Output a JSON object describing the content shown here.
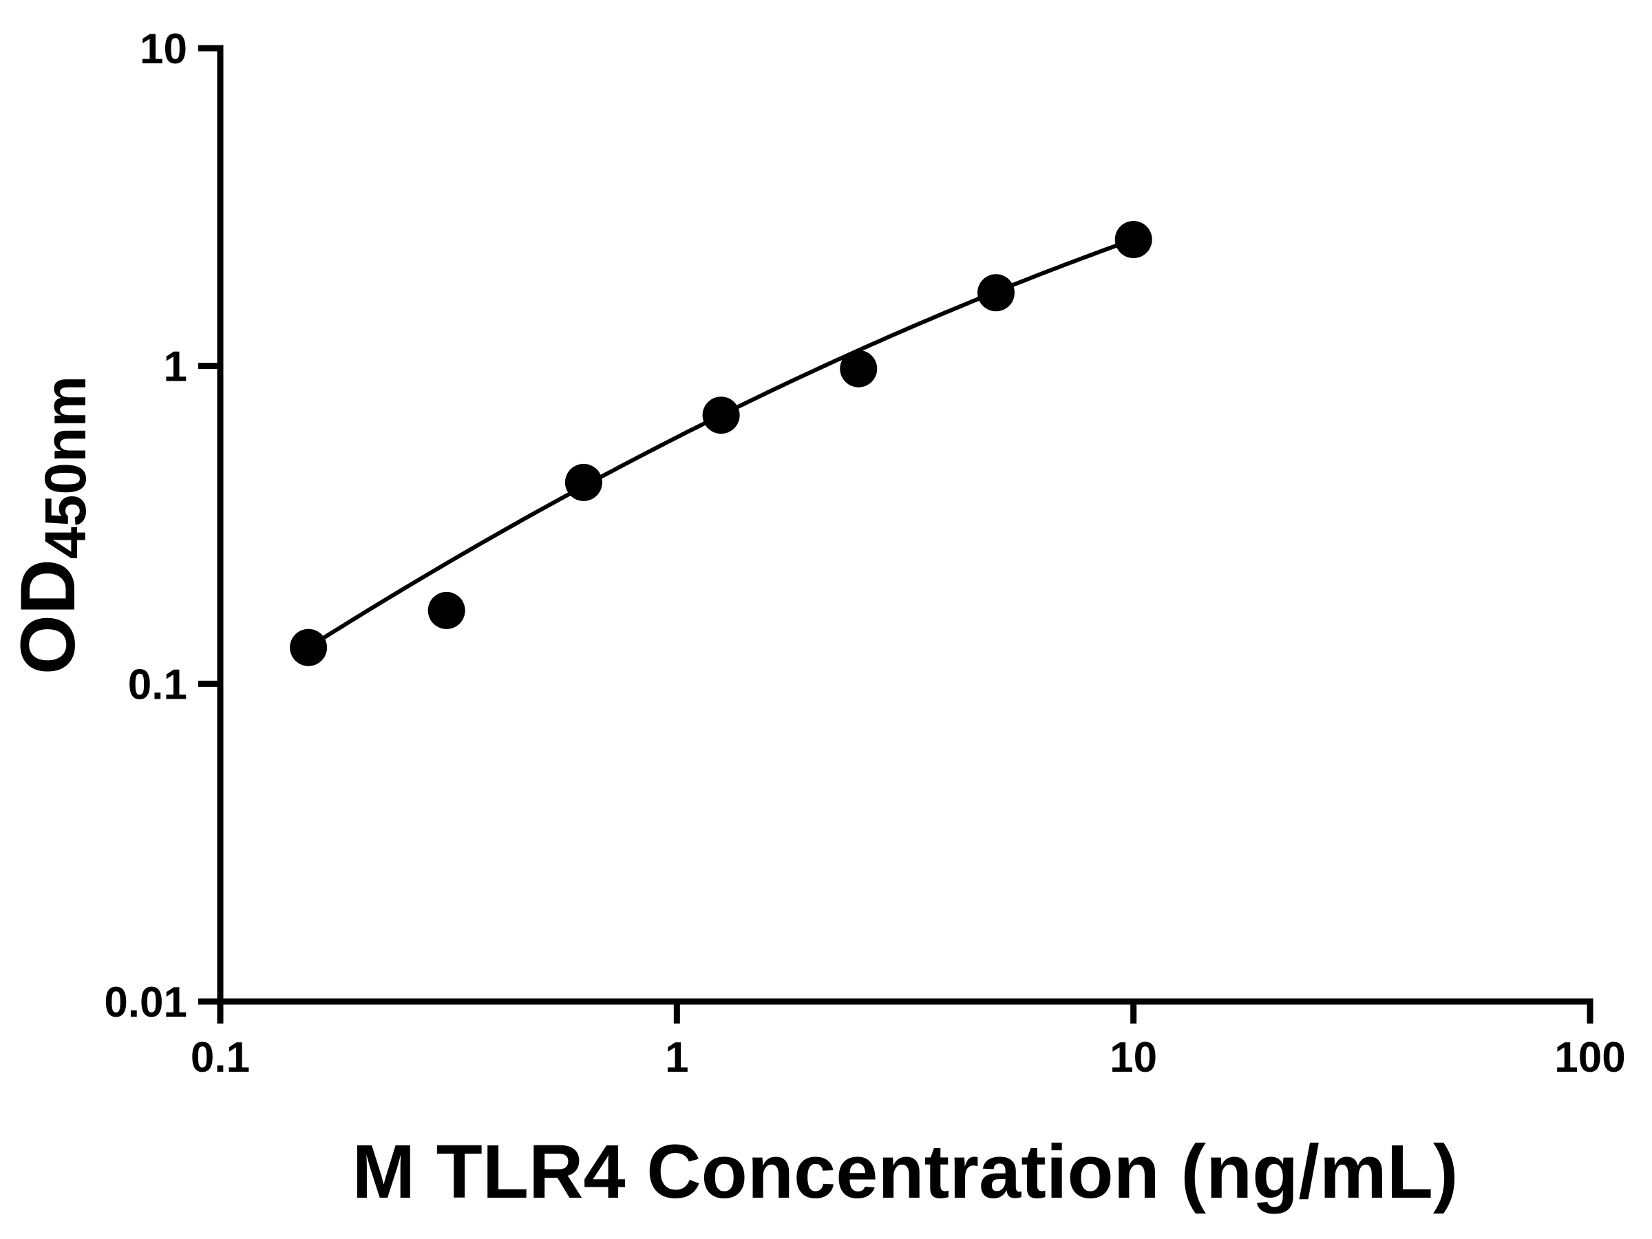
{
  "chart_data": {
    "type": "scatter",
    "title": "",
    "xlabel": "M TLR4 Concentration (ng/mL)",
    "ylabel_main": "OD",
    "ylabel_sub": "450nm",
    "x_scale": "log",
    "y_scale": "log",
    "xlim": [
      0.1,
      100
    ],
    "ylim": [
      0.01,
      10
    ],
    "x_ticks": [
      0.1,
      1,
      10,
      100
    ],
    "x_tick_labels": [
      "0.1",
      "1",
      "10",
      "100"
    ],
    "y_ticks": [
      0.01,
      0.1,
      1,
      10
    ],
    "y_tick_labels": [
      "0.01",
      "0.1",
      "1",
      "10"
    ],
    "points": [
      {
        "x": 0.156,
        "y": 0.13
      },
      {
        "x": 0.313,
        "y": 0.17
      },
      {
        "x": 0.625,
        "y": 0.43
      },
      {
        "x": 1.25,
        "y": 0.7
      },
      {
        "x": 2.5,
        "y": 0.98
      },
      {
        "x": 5,
        "y": 1.7
      },
      {
        "x": 10,
        "y": 2.5
      }
    ],
    "fit_curve": {
      "type": "quadratic-loglog",
      "coeffs": [
        -0.2245,
        0.7315,
        -0.109
      ],
      "x_range": [
        0.15,
        10
      ]
    },
    "grid": false,
    "legend": null,
    "marker_color": "#000000",
    "line_color": "#000000",
    "axis_color": "#000000",
    "background": "#ffffff"
  }
}
